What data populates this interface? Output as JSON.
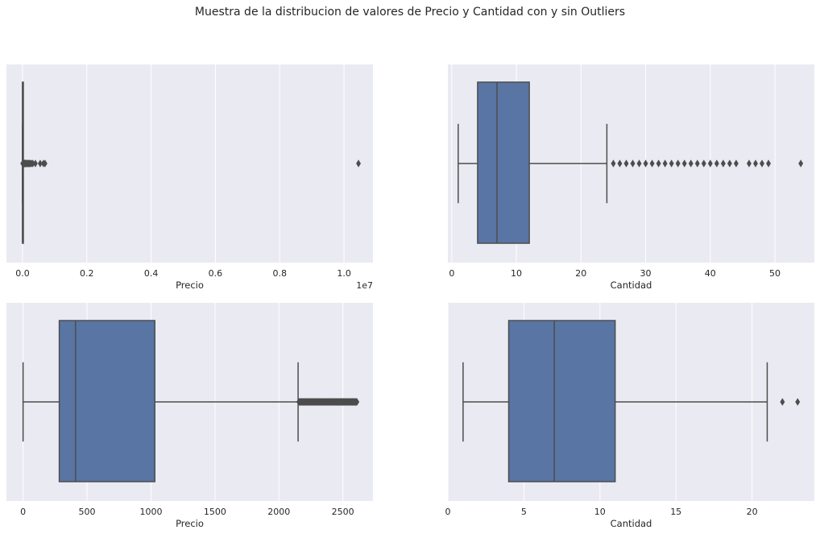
{
  "figure": {
    "title": "Muestra de la distribucion de valores de Precio y Cantidad con y sin Outliers"
  },
  "style": {
    "axes_background": "#EAEAF2",
    "grid_color": "#FFFFFF",
    "box_color": "#5875A4",
    "line_color": "#4D4D4D",
    "text_color": "#262626"
  },
  "chart_data": [
    {
      "type": "boxplot",
      "orientation": "horizontal",
      "position": "top-left",
      "xlabel": "Precio",
      "offset_label": "1e7",
      "xlim": [
        -0.05,
        1.09
      ],
      "xticks": [
        0.0,
        0.2,
        0.4,
        0.6,
        0.8,
        1.0
      ],
      "tick_labels": [
        "0.0",
        "0.2",
        "0.4",
        "0.6",
        "0.8",
        "1.0"
      ],
      "grid": true,
      "box": {
        "whisker_low": 0.0,
        "q1": 5e-05,
        "median": 0.0001,
        "q3": 0.0002,
        "whisker_high": 0.0005
      },
      "outliers": [
        0.0006,
        0.0012,
        0.002,
        0.003,
        0.004,
        0.005,
        0.006,
        0.007,
        0.008,
        0.009,
        0.01,
        0.012,
        0.014,
        0.016,
        0.018,
        0.02,
        0.022,
        0.025,
        0.028,
        0.032,
        0.04,
        0.055,
        0.065,
        0.07,
        1.045
      ]
    },
    {
      "type": "boxplot",
      "orientation": "horizontal",
      "position": "top-right",
      "xlabel": "Cantidad",
      "xlim": [
        -0.6,
        56.1
      ],
      "xticks": [
        0,
        10,
        20,
        30,
        40,
        50
      ],
      "tick_labels": [
        "0",
        "10",
        "20",
        "30",
        "40",
        "50"
      ],
      "grid": true,
      "box": {
        "whisker_low": 1,
        "q1": 4,
        "median": 7,
        "q3": 12,
        "whisker_high": 24
      },
      "outliers": [
        25,
        26,
        27,
        28,
        29,
        30,
        31,
        32,
        33,
        34,
        35,
        36,
        37,
        38,
        39,
        40,
        41,
        42,
        43,
        44,
        46,
        47,
        48,
        49,
        54
      ]
    },
    {
      "type": "boxplot",
      "orientation": "horizontal",
      "position": "bottom-left",
      "xlabel": "Precio",
      "xlim": [
        -130,
        2735
      ],
      "xticks": [
        0,
        500,
        1000,
        1500,
        2000,
        2500
      ],
      "tick_labels": [
        "0",
        "500",
        "1000",
        "1500",
        "2000",
        "2500"
      ],
      "grid": true,
      "box": {
        "whisker_low": 0,
        "q1": 283,
        "median": 410,
        "q3": 1030,
        "whisker_high": 2150
      },
      "outliers_range": [
        2155,
        2610
      ]
    },
    {
      "type": "boxplot",
      "orientation": "horizontal",
      "position": "bottom-right",
      "xlabel": "Cantidad",
      "xlim": [
        0,
        24.1
      ],
      "xticks": [
        0,
        5,
        10,
        15,
        20
      ],
      "tick_labels": [
        "0",
        "5",
        "10",
        "15",
        "20"
      ],
      "grid": true,
      "box": {
        "whisker_low": 1,
        "q1": 4,
        "median": 7,
        "q3": 11,
        "whisker_high": 21
      },
      "outliers": [
        22,
        23
      ]
    }
  ]
}
